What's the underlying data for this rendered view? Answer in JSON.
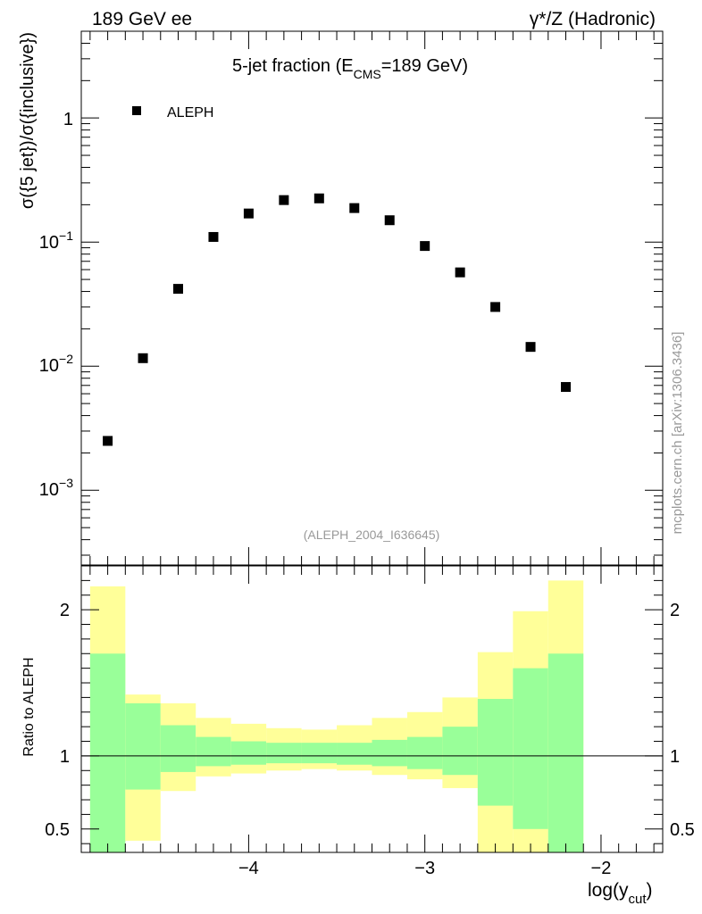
{
  "header": {
    "energy": "189 GeV ee",
    "process": "γ*/Z (Hadronic)"
  },
  "watermark": "mcplots.cern.ch [arXiv:1306.3436]",
  "colors": {
    "band_outer": "#ffff99",
    "band_inner": "#99ff99",
    "marker": "#000000",
    "axis": "#000000",
    "analysis_label": "#999999"
  },
  "chart_data": [
    {
      "type": "scatter",
      "title": {
        "main": "5-jet fraction (E",
        "sub": "CMS",
        "tail": "=189 GeV)"
      },
      "xlabel": "",
      "ylabel": "σ({5 jet})/σ({inclusive})",
      "yscale": "log",
      "xlim": [
        -4.95,
        -1.65
      ],
      "ylim": [
        0.00025,
        5
      ],
      "ytick_labels": [
        {
          "value": 1,
          "text": "1"
        },
        {
          "value": 0.1,
          "base": "10",
          "exp": "−1"
        },
        {
          "value": 0.01,
          "base": "10",
          "exp": "−2"
        },
        {
          "value": 0.001,
          "base": "10",
          "exp": "−3"
        }
      ],
      "legend": {
        "label": "ALEPH",
        "position": "top-left"
      },
      "analysis_label": "(ALEPH_2004_I636645)",
      "series": [
        {
          "name": "ALEPH",
          "x": [
            -4.8,
            -4.6,
            -4.4,
            -4.2,
            -4.0,
            -3.8,
            -3.6,
            -3.4,
            -3.2,
            -3.0,
            -2.8,
            -2.6,
            -2.4,
            -2.2
          ],
          "y": [
            0.0025,
            0.0116,
            0.042,
            0.11,
            0.17,
            0.218,
            0.225,
            0.188,
            0.15,
            0.093,
            0.057,
            0.03,
            0.0143,
            0.0068
          ]
        }
      ]
    },
    {
      "type": "area",
      "title": "",
      "xlabel": {
        "main": "log(y",
        "sub": "cut",
        "tail": ")"
      },
      "ylabel": "Ratio to ALEPH",
      "xlim": [
        -4.95,
        -1.65
      ],
      "ylim": [
        0.34,
        2.3
      ],
      "xtick_labels": [
        "−4",
        "−3",
        "−2"
      ],
      "xtick_values": [
        -4,
        -3,
        -2
      ],
      "ytick_labels": [
        "0.5",
        "1",
        "2"
      ],
      "ytick_values": [
        0.5,
        1,
        2
      ],
      "reference_line": 1,
      "bins": [
        {
          "x0": -4.9,
          "x1": -4.7,
          "outer": [
            0.0,
            2.16
          ],
          "inner": [
            0.0,
            1.7
          ]
        },
        {
          "x0": -4.7,
          "x1": -4.5,
          "outer": [
            0.42,
            1.42
          ],
          "inner": [
            0.77,
            1.36
          ]
        },
        {
          "x0": -4.5,
          "x1": -4.3,
          "outer": [
            0.76,
            1.36
          ],
          "inner": [
            0.89,
            1.21
          ]
        },
        {
          "x0": -4.3,
          "x1": -4.1,
          "outer": [
            0.86,
            1.26
          ],
          "inner": [
            0.93,
            1.13
          ]
        },
        {
          "x0": -4.1,
          "x1": -3.9,
          "outer": [
            0.88,
            1.22
          ],
          "inner": [
            0.94,
            1.1
          ]
        },
        {
          "x0": -3.9,
          "x1": -3.7,
          "outer": [
            0.9,
            1.19
          ],
          "inner": [
            0.95,
            1.09
          ]
        },
        {
          "x0": -3.7,
          "x1": -3.5,
          "outer": [
            0.91,
            1.18
          ],
          "inner": [
            0.95,
            1.09
          ]
        },
        {
          "x0": -3.5,
          "x1": -3.3,
          "outer": [
            0.9,
            1.21
          ],
          "inner": [
            0.94,
            1.09
          ]
        },
        {
          "x0": -3.3,
          "x1": -3.1,
          "outer": [
            0.87,
            1.26
          ],
          "inner": [
            0.93,
            1.11
          ]
        },
        {
          "x0": -3.1,
          "x1": -2.9,
          "outer": [
            0.84,
            1.3
          ],
          "inner": [
            0.91,
            1.13
          ]
        },
        {
          "x0": -2.9,
          "x1": -2.7,
          "outer": [
            0.78,
            1.4
          ],
          "inner": [
            0.87,
            1.2
          ]
        },
        {
          "x0": -2.7,
          "x1": -2.5,
          "outer": [
            0.0,
            1.71
          ],
          "inner": [
            0.66,
            1.39
          ]
        },
        {
          "x0": -2.5,
          "x1": -2.3,
          "outer": [
            0.0,
            1.99
          ],
          "inner": [
            0.5,
            1.6
          ]
        },
        {
          "x0": -2.3,
          "x1": -2.1,
          "outer": [
            0.0,
            2.2
          ],
          "inner": [
            0.0,
            1.7
          ]
        }
      ]
    }
  ]
}
